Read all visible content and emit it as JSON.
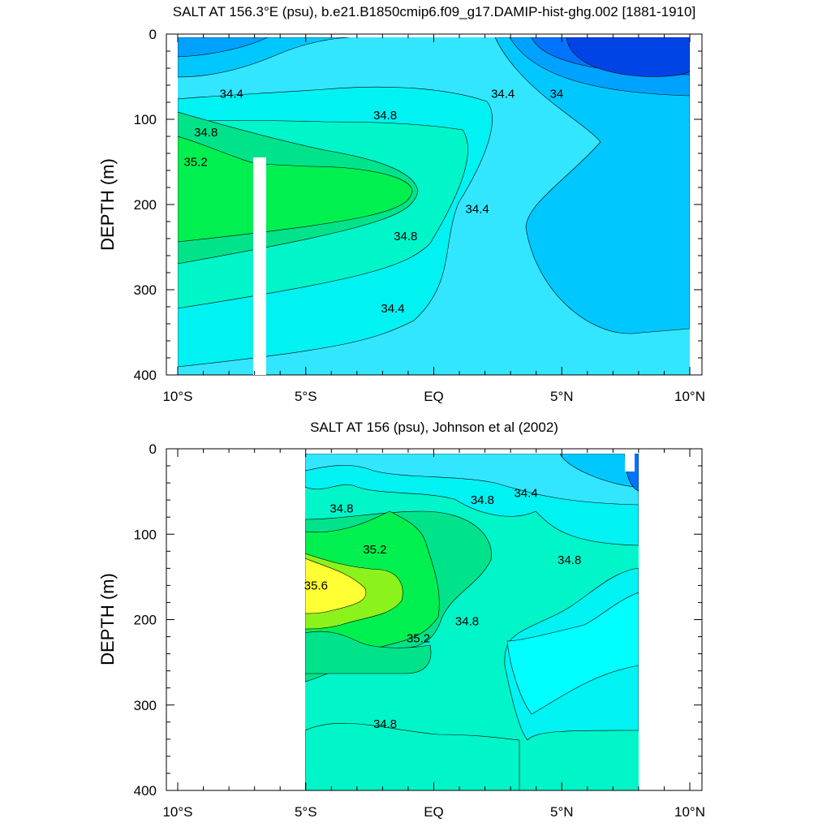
{
  "chart_data": [
    {
      "type": "contour",
      "title": "SALT AT 156.3°E (psu), b.e21.B1850cmip6.f09_g17.DAMIP-hist-ghg.002 [1881-1910]",
      "ylabel": "DEPTH (m)",
      "xlim": [
        -10,
        10
      ],
      "ylim": [
        400,
        0
      ],
      "x_ticks": [
        -10,
        -5,
        0,
        5,
        10
      ],
      "x_tick_labels": [
        "10°S",
        "5°S",
        "EQ",
        "5°N",
        "10°N"
      ],
      "y_ticks": [
        0,
        100,
        200,
        300,
        400
      ],
      "y_tick_labels": [
        "0",
        "100",
        "200",
        "300",
        "400"
      ],
      "data_extent": {
        "lat": [
          -9.5,
          10
        ],
        "depth": [
          5,
          400
        ]
      },
      "missing_column": {
        "lat": [
          -6.5,
          -6.0
        ],
        "depth": [
          145,
          400
        ]
      },
      "levels": [
        33.6,
        33.8,
        34.0,
        34.2,
        34.4,
        34.6,
        34.8,
        35.0,
        35.2
      ],
      "colors": {
        "<33.8": "#0044e6",
        "33.8-34.0": "#0073ff",
        "34.0-34.2": "#00a2ff",
        "34.2-34.4": "#00c8ff",
        "34.4-34.6": "#33e6ff",
        "34.6-34.8": "#00f2f2",
        "34.8-35.0": "#00f5c8",
        "35.0-35.2": "#00e38a",
        ">35.2": "#00f050"
      },
      "contour_labels": [
        {
          "text": "34.4",
          "lat": -7.9,
          "depth": 70
        },
        {
          "text": "34.8",
          "lat": -8.9,
          "depth": 115
        },
        {
          "text": "35.2",
          "lat": -9.3,
          "depth": 150
        },
        {
          "text": "34.8",
          "lat": -1.9,
          "depth": 95
        },
        {
          "text": "34.4",
          "lat": 2.7,
          "depth": 70
        },
        {
          "text": "34",
          "lat": 4.8,
          "depth": 70
        },
        {
          "text": "34.4",
          "lat": 1.7,
          "depth": 205
        },
        {
          "text": "34.8",
          "lat": -1.1,
          "depth": 237
        },
        {
          "text": "34.4",
          "lat": -1.6,
          "depth": 322
        }
      ]
    },
    {
      "type": "contour",
      "title": "SALT AT 156 (psu), Johnson et al (2002)",
      "ylabel": "DEPTH (m)",
      "xlim": [
        -10,
        10
      ],
      "ylim": [
        400,
        0
      ],
      "x_ticks": [
        -10,
        -5,
        0,
        5,
        10
      ],
      "x_tick_labels": [
        "10°S",
        "5°S",
        "EQ",
        "5°N",
        "10°N"
      ],
      "y_ticks": [
        0,
        100,
        200,
        300,
        400
      ],
      "y_tick_labels": [
        "0",
        "100",
        "200",
        "300",
        "400"
      ],
      "data_extent": {
        "lat": [
          -5,
          8
        ],
        "depth": [
          5,
          400
        ]
      },
      "levels": [
        34.0,
        34.2,
        34.4,
        34.6,
        34.8,
        35.0,
        35.2,
        35.4,
        35.6
      ],
      "colors": {
        "<34.2": "#0073ff",
        "34.2-34.4": "#00c8ff",
        "34.4-34.6": "#33e6ff",
        "34.6-34.8": "#00f2f2",
        "34.8-35.0": "#00f5c8",
        "35.0-35.2": "#00e38a",
        "35.2-35.4": "#00f050",
        "35.4-35.6": "#8cf21c",
        ">35.6": "#ffff33"
      },
      "contour_labels": [
        {
          "text": "34.8",
          "lat": -3.6,
          "depth": 70
        },
        {
          "text": "35.2",
          "lat": -2.3,
          "depth": 118
        },
        {
          "text": "35.6",
          "lat": -4.6,
          "depth": 160
        },
        {
          "text": "34.8",
          "lat": 1.9,
          "depth": 60
        },
        {
          "text": "34.4",
          "lat": 3.6,
          "depth": 52
        },
        {
          "text": "34.8",
          "lat": 5.3,
          "depth": 130
        },
        {
          "text": "35.2",
          "lat": -0.6,
          "depth": 222
        },
        {
          "text": "34.8",
          "lat": 1.3,
          "depth": 202
        },
        {
          "text": "34.8",
          "lat": -1.9,
          "depth": 322
        }
      ]
    }
  ]
}
